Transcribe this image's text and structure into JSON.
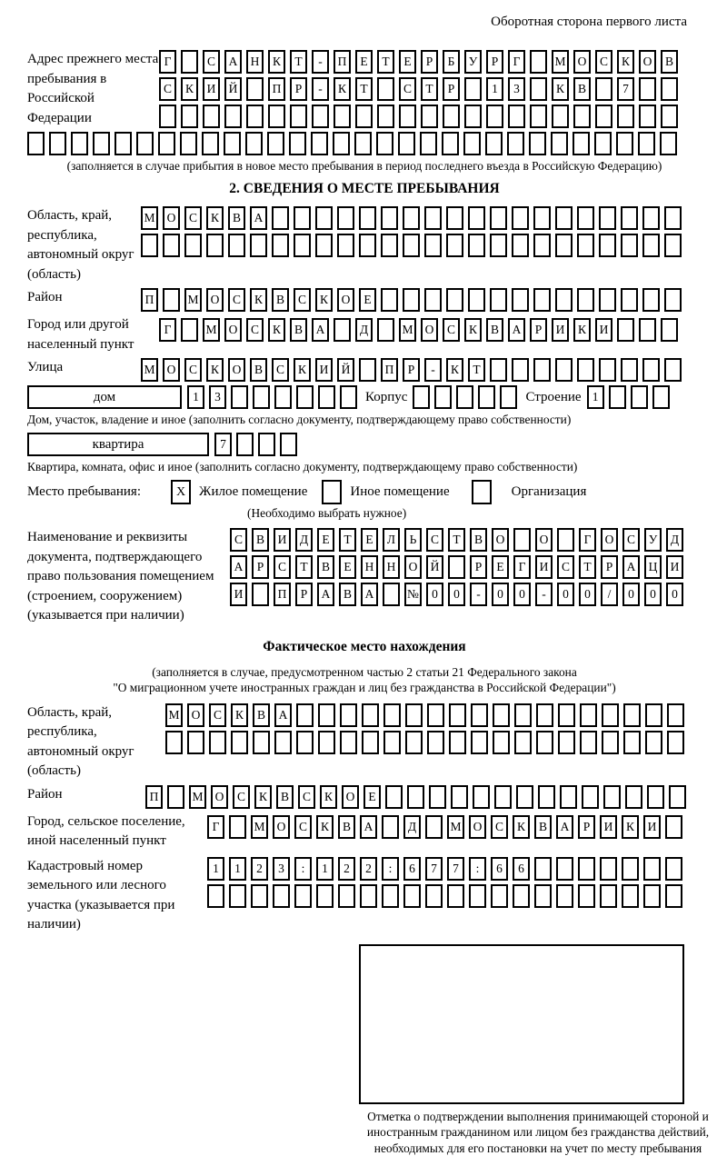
{
  "page": {
    "header": "Оборотная сторона первого листа"
  },
  "section1": {
    "label": "Адрес прежнего места пребывания в Российской Федерации",
    "rows": [
      {
        "cells": "Г САНКТ-ПЕТЕРБУРГ МОСКОВ",
        "len": 24
      },
      {
        "cells": "СКИЙ ПР-КТ СТР 13 КВ 7",
        "len": 24
      },
      {
        "cells": "",
        "len": 24
      }
    ],
    "full_row": {
      "cells": "",
      "len": 30
    },
    "note": "(заполняется в случае прибытия в новое место пребывания в период последнего въезда в Российскую Федерацию)"
  },
  "section2": {
    "title": "2. СВЕДЕНИЯ О МЕСТЕ ПРЕБЫВАНИЯ",
    "region": {
      "label": "Область, край, республика, автономный округ (область)",
      "rows": [
        {
          "cells": "МОСКВА",
          "len": 25
        },
        {
          "cells": "",
          "len": 25
        }
      ]
    },
    "district": {
      "label": "Район",
      "row": {
        "cells": "П МОСКВСКОЕ",
        "len": 25
      }
    },
    "city": {
      "label": "Город или другой населенный пункт",
      "row": {
        "cells": "Г МОСКВА Д МОСКВАРИКИ",
        "len": 24
      }
    },
    "street": {
      "label": "Улица",
      "row": {
        "cells": "МОСКОВСКИЙ ПР-КТ",
        "len": 25
      }
    },
    "house": {
      "box_label": "дом",
      "house_row": {
        "cells": "13",
        "len": 8
      },
      "korpus_label": "Корпус",
      "korpus_row": {
        "cells": "",
        "len": 5
      },
      "stroenie_label": "Строение",
      "stroenie_row": {
        "cells": "1",
        "len": 4
      },
      "note": "Дом, участок, владение и иное (заполнить согласно документу, подтверждающему право собственности)"
    },
    "apartment": {
      "box_label": "квартира",
      "row": {
        "cells": "7",
        "len": 4
      },
      "note": "Квартира, комната, офис и иное (заполнить согласно документу, подтверждающему право собственности)"
    },
    "stay_type": {
      "label": "Место пребывания:",
      "options": [
        {
          "label": "Жилое помещение",
          "checked": "X"
        },
        {
          "label": "Иное помещение",
          "checked": ""
        },
        {
          "label": "Организация",
          "checked": ""
        }
      ],
      "note": "(Необходимо выбрать нужное)"
    },
    "doc": {
      "label": "Наименование и реквизиты документа, подтверждающего право пользования помещением (строением, сооружением) (указывается при наличии)",
      "rows": [
        {
          "cells": "СВИДЕТЕЛЬСТВО О ГОСУД",
          "len": 21
        },
        {
          "cells": "АРСТВЕННОЙ РЕГИСТРАЦИ",
          "len": 21
        },
        {
          "cells": "И ПРАВА №00-00-00/000",
          "len": 21
        }
      ]
    }
  },
  "section3": {
    "title": "Фактическое место нахождения",
    "note1": "(заполняется в случае, предусмотренном частью 2 статьи 21 Федерального закона",
    "note2": "\"О миграционном учете иностранных граждан и лиц без гражданства в Российской Федерации\")",
    "region": {
      "label": "Область, край, республика, автономный округ (область)",
      "rows": [
        {
          "cells": "МОСКВА",
          "len": 24
        },
        {
          "cells": "",
          "len": 24
        }
      ]
    },
    "district": {
      "label": "Район",
      "row": {
        "cells": "П МОСКВСКОЕ",
        "len": 25
      }
    },
    "city": {
      "label": "Город, сельское поселение, иной населенный пункт",
      "row": {
        "cells": "Г МОСКВА Д МОСКВАРИКИ",
        "len": 22
      }
    },
    "cadastral": {
      "label": "Кадастровый номер земельного или лесного участка (указывается при наличии)",
      "rows": [
        {
          "cells": "1123:122:677:66",
          "len": 22
        },
        {
          "cells": "",
          "len": 22
        }
      ]
    },
    "stamp_note": "Отметка о подтверждении выполнения принимающей стороной и иностранным гражданином или лицом без гражданства действий, необходимых для его постановки на учет по месту пребывания"
  }
}
